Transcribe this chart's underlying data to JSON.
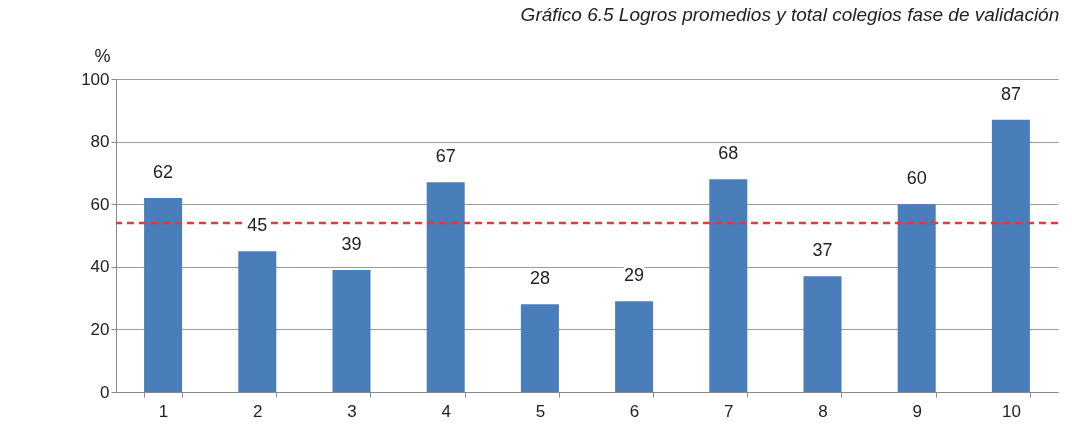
{
  "chart_data": {
    "type": "bar",
    "title": "Gráfico 6.5 Logros promedios y total colegios fase de validación",
    "ylabel": "%",
    "categories": [
      "1",
      "2",
      "3",
      "4",
      "5",
      "6",
      "7",
      "8",
      "9",
      "10"
    ],
    "values": [
      62,
      45,
      39,
      67,
      28,
      29,
      68,
      37,
      60,
      87
    ],
    "color": "#4a7ebb",
    "ylim": [
      0,
      100
    ],
    "yticks": [
      0,
      20,
      40,
      60,
      80,
      100
    ],
    "grid": "y",
    "data_labels": true,
    "ref_lines": [
      {
        "axis": "y",
        "value": 54,
        "color": "#e03a3a",
        "line_style": "dashed"
      }
    ]
  }
}
